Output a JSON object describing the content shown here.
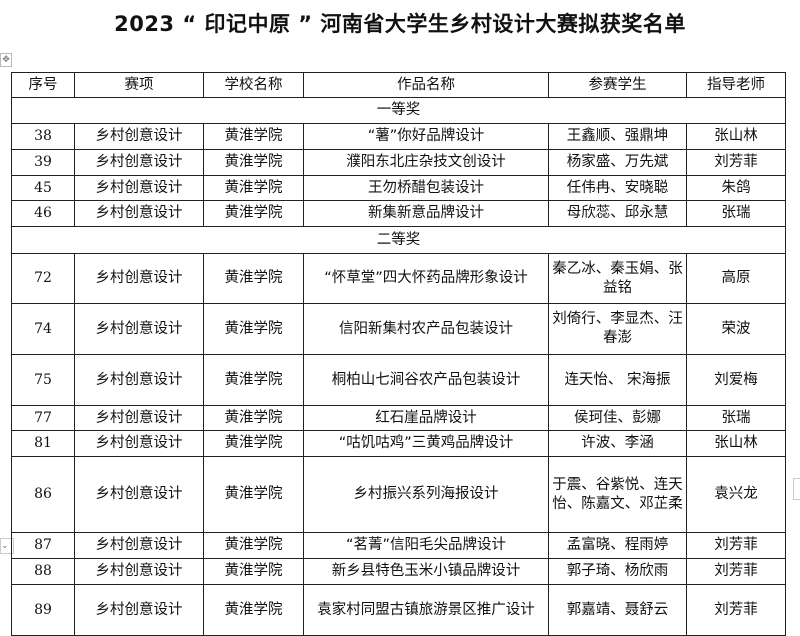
{
  "title": "2023 “ 印记中原 ” 河南省大学生乡村设计大赛拟获奖名单",
  "headers": [
    "序号",
    "赛项",
    "学校名称",
    "作品名称",
    "参赛学生",
    "指导老师"
  ],
  "sections": [
    {
      "label": "一等奖",
      "rows": [
        [
          "38",
          "乡村创意设计",
          "黄淮学院",
          "“薯”你好品牌设计",
          "王鑫顺、强鼎坤",
          "张山林"
        ],
        [
          "39",
          "乡村创意设计",
          "黄淮学院",
          "濮阳东北庄杂技文创设计",
          "杨家盛、万先斌",
          "刘芳菲"
        ],
        [
          "45",
          "乡村创意设计",
          "黄淮学院",
          "王勿桥醋包装设计",
          "任伟冉、安晓聪",
          "朱鸽"
        ],
        [
          "46",
          "乡村创意设计",
          "黄淮学院",
          "新集新意品牌设计",
          "母欣蕊、邱永慧",
          "张瑞"
        ]
      ]
    },
    {
      "label": "二等奖",
      "rows": [
        [
          "72",
          "乡村创意设计",
          "黄淮学院",
          "“怀草堂”四大怀药品牌形象设计",
          "秦乙冰、秦玉娟、张益铭",
          "高原"
        ],
        [
          "74",
          "乡村创意设计",
          "黄淮学院",
          "信阳新集村农产品包装设计",
          "刘倚行、李显杰、汪春澎",
          "荣波"
        ],
        [
          "75",
          "乡村创意设计",
          "黄淮学院",
          "桐柏山七涧谷农产品包装设计",
          "连天怡、 宋海振",
          "刘爱梅"
        ],
        [
          "77",
          "乡村创意设计",
          "黄淮学院",
          "红石崖品牌设计",
          "侯珂佳、彭娜",
          "张瑞"
        ],
        [
          "81",
          "乡村创意设计",
          "黄淮学院",
          "“咕饥咕鸡”三黄鸡品牌设计",
          "许波、李涵",
          "张山林"
        ],
        [
          "86",
          "乡村创意设计",
          "黄淮学院",
          "乡村振兴系列海报设计",
          "于震、谷紫悦、连天怡、陈嘉文、邓芷柔",
          "袁兴龙"
        ],
        [
          "87",
          "乡村创意设计",
          "黄淮学院",
          "“茗菁”信阳毛尖品牌设计",
          "孟富晓、程雨婷",
          "刘芳菲"
        ],
        [
          "88",
          "乡村创意设计",
          "黄淮学院",
          "新乡县特色玉米小镇品牌设计",
          "郭子琦、杨欣雨",
          "刘芳菲"
        ],
        [
          "89",
          "乡村创意设计",
          "黄淮学院",
          "袁家村同盟古镇旅游景区推广设计",
          "郭嘉靖、聂舒云",
          "刘芳菲"
        ]
      ]
    }
  ]
}
